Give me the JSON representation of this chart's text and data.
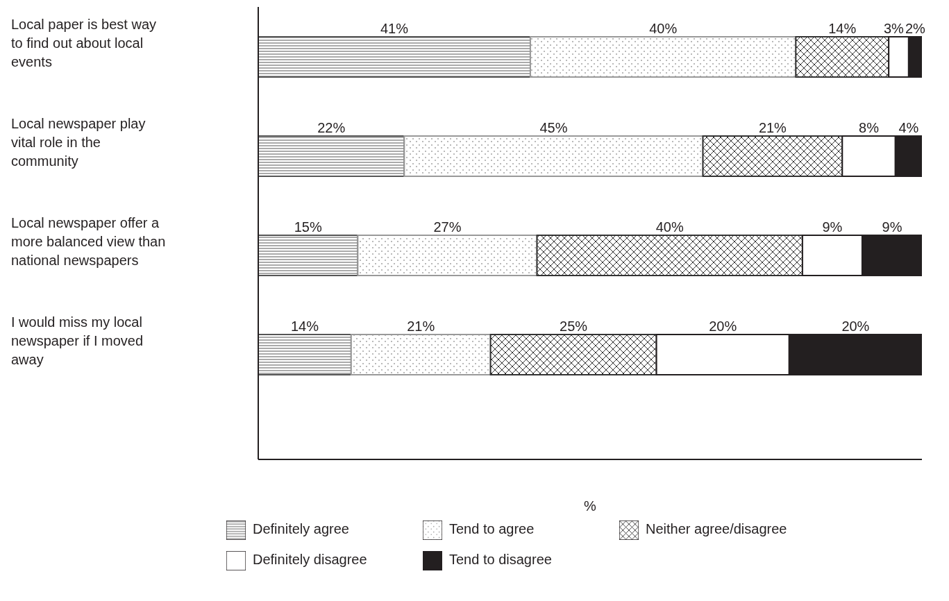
{
  "chart_data": {
    "type": "bar",
    "orientation": "horizontal",
    "stacked": true,
    "xlabel": "%",
    "categories": [
      "Local paper is best way to find out about local events",
      "Local newspaper play vital role in the community",
      "Local newspaper offer a more balanced view than national newspapers",
      "I would miss my local newspaper if I moved away"
    ],
    "xlim": [
      0,
      100
    ],
    "tick_labels": "y",
    "grid": false,
    "legend": "bottom",
    "series": [
      {
        "name": "Definitely agree",
        "color": "#555555",
        "values": [
          41,
          22,
          15,
          14
        ],
        "value_labels": [
          "41%",
          "22%",
          "15%",
          "14%"
        ]
      },
      {
        "name": "Tend to agree",
        "color": "#999999",
        "values": [
          40,
          45,
          27,
          21
        ],
        "value_labels": [
          "40%",
          "45%",
          "27%",
          "21%"
        ]
      },
      {
        "name": "Neither agree/disagree",
        "color": "#333333",
        "values": [
          14,
          21,
          40,
          25
        ],
        "value_labels": [
          "14%",
          "21%",
          "40%",
          "25%"
        ]
      },
      {
        "name": "Definitely disagree",
        "color": "#ffffff",
        "values": [
          3,
          8,
          9,
          20
        ],
        "value_labels": [
          "3%",
          "8%",
          "9%",
          "20%"
        ]
      },
      {
        "name": "Tend to disagree",
        "color": "#231f20",
        "values": [
          2,
          4,
          9,
          20
        ],
        "value_labels": [
          "2%",
          "4%",
          "9%",
          "20%"
        ]
      }
    ]
  }
}
